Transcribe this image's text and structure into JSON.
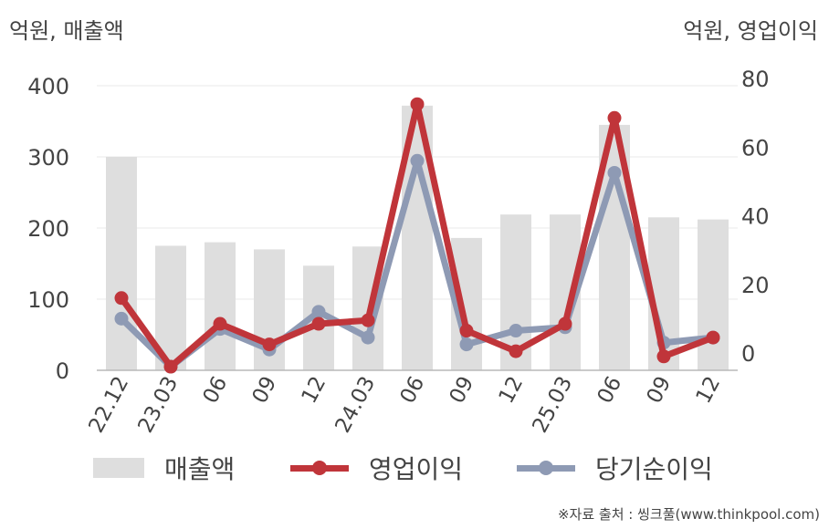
{
  "units": {
    "left": "억원, 매출액",
    "right": "억원, 영업이익"
  },
  "source": "※자료 출처 : 씽크풀(www.thinkpool.com)",
  "legend": {
    "revenue": "매출액",
    "operating": "영업이익",
    "net": "당기순이익"
  },
  "colors": {
    "revenue": "#dedede",
    "operating": "#c0353a",
    "net": "#8e9ab4"
  },
  "chart_data": {
    "type": "bar+line",
    "categories": [
      "22.12",
      "23.03",
      "06",
      "09",
      "12",
      "24.03",
      "06",
      "09",
      "12",
      "25.03",
      "06",
      "09",
      "12"
    ],
    "y_left": {
      "ticks": [
        0,
        100,
        200,
        300,
        400
      ],
      "range": [
        0,
        400
      ]
    },
    "y_right": {
      "ticks": [
        0,
        20,
        40,
        60,
        80
      ],
      "range": [
        -5,
        80
      ]
    },
    "series": [
      {
        "name": "매출액",
        "type": "bar",
        "axis": "left",
        "values": [
          300,
          175,
          180,
          170,
          147,
          174,
          372,
          186,
          219,
          219,
          345,
          215,
          212
        ]
      },
      {
        "name": "영업이익",
        "type": "line",
        "axis": "right",
        "values": [
          16,
          -4,
          8.5,
          2.5,
          8.5,
          9.5,
          72.5,
          6.5,
          0.5,
          8.5,
          68.5,
          -1,
          4.5
        ]
      },
      {
        "name": "당기순이익",
        "type": "line",
        "axis": "right",
        "values": [
          10,
          -4,
          7,
          1,
          12,
          4.5,
          56,
          2.5,
          6.5,
          7.5,
          52.5,
          3,
          4.5
        ]
      }
    ],
    "grid": true,
    "legend_position": "bottom"
  }
}
